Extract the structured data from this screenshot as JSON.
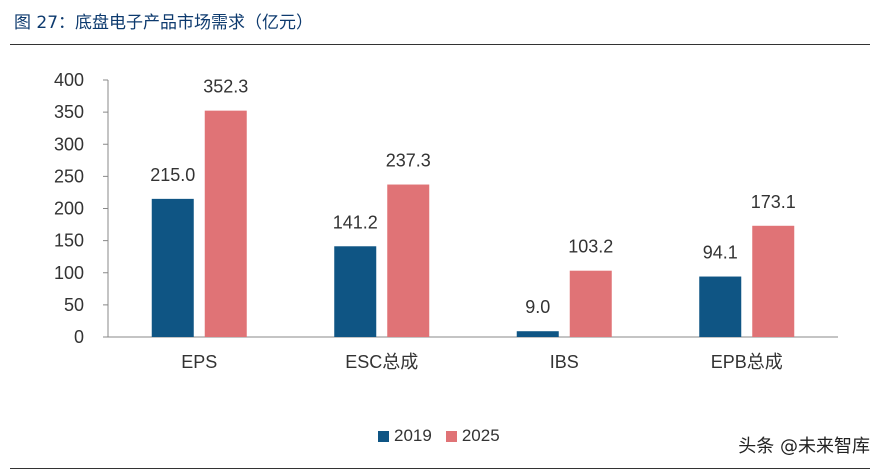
{
  "figure_title": "图 27：底盘电子产品市场需求（亿元）",
  "watermark": "头条 @未来智库",
  "chart_data": {
    "type": "bar",
    "categories": [
      "EPS",
      "ESC总成",
      "IBS",
      "EPB总成"
    ],
    "series": [
      {
        "name": "2019",
        "values": [
          215.0,
          141.2,
          9.0,
          94.1
        ],
        "color": "#0f5584"
      },
      {
        "name": "2025",
        "values": [
          352.3,
          237.3,
          103.2,
          173.1
        ],
        "color": "#e07376"
      }
    ],
    "data_labels": [
      [
        "215.0",
        "141.2",
        "9.0",
        "94.1"
      ],
      [
        "352.3",
        "237.3",
        "103.2",
        "173.1"
      ]
    ],
    "yticks": [
      "0",
      "50",
      "100",
      "150",
      "200",
      "250",
      "300",
      "350",
      "400"
    ],
    "ylim": [
      0,
      400
    ],
    "grid": false,
    "legend_position": "bottom"
  }
}
